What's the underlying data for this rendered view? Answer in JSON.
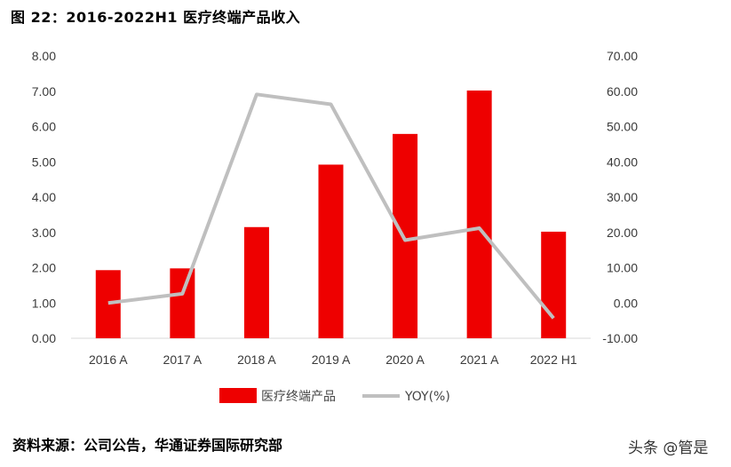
{
  "header": {
    "title": "图 22：2016-2022H1 医疗终端产品收入"
  },
  "footer": {
    "source": "资料来源：公司公告，华通证券国际研究部",
    "watermark": "头条 @管是"
  },
  "chart_data": {
    "type": "bar",
    "categories": [
      "2016 A",
      "2017 A",
      "2018 A",
      "2019 A",
      "2020 A",
      "2021 A",
      "2022 H1"
    ],
    "series": [
      {
        "name": "医疗终端产品",
        "type": "bar",
        "axis": "left",
        "color": "#ee0000",
        "values": [
          1.93,
          1.98,
          3.15,
          4.92,
          5.79,
          7.02,
          3.02
        ]
      },
      {
        "name": "YOY(%)",
        "type": "line",
        "axis": "right",
        "color": "#bfbfbf",
        "values": [
          0.0,
          2.6,
          59.1,
          56.3,
          17.8,
          21.2,
          -4.3
        ]
      }
    ],
    "left_axis": {
      "ylim": [
        0,
        8
      ],
      "ticks": [
        "0.00",
        "1.00",
        "2.00",
        "3.00",
        "4.00",
        "5.00",
        "6.00",
        "7.00",
        "8.00"
      ]
    },
    "right_axis": {
      "ylim": [
        -10,
        70
      ],
      "ticks": [
        "-10.00",
        "0.00",
        "10.00",
        "20.00",
        "30.00",
        "40.00",
        "50.00",
        "60.00",
        "70.00"
      ]
    },
    "legend_position": "bottom",
    "grid": false
  }
}
